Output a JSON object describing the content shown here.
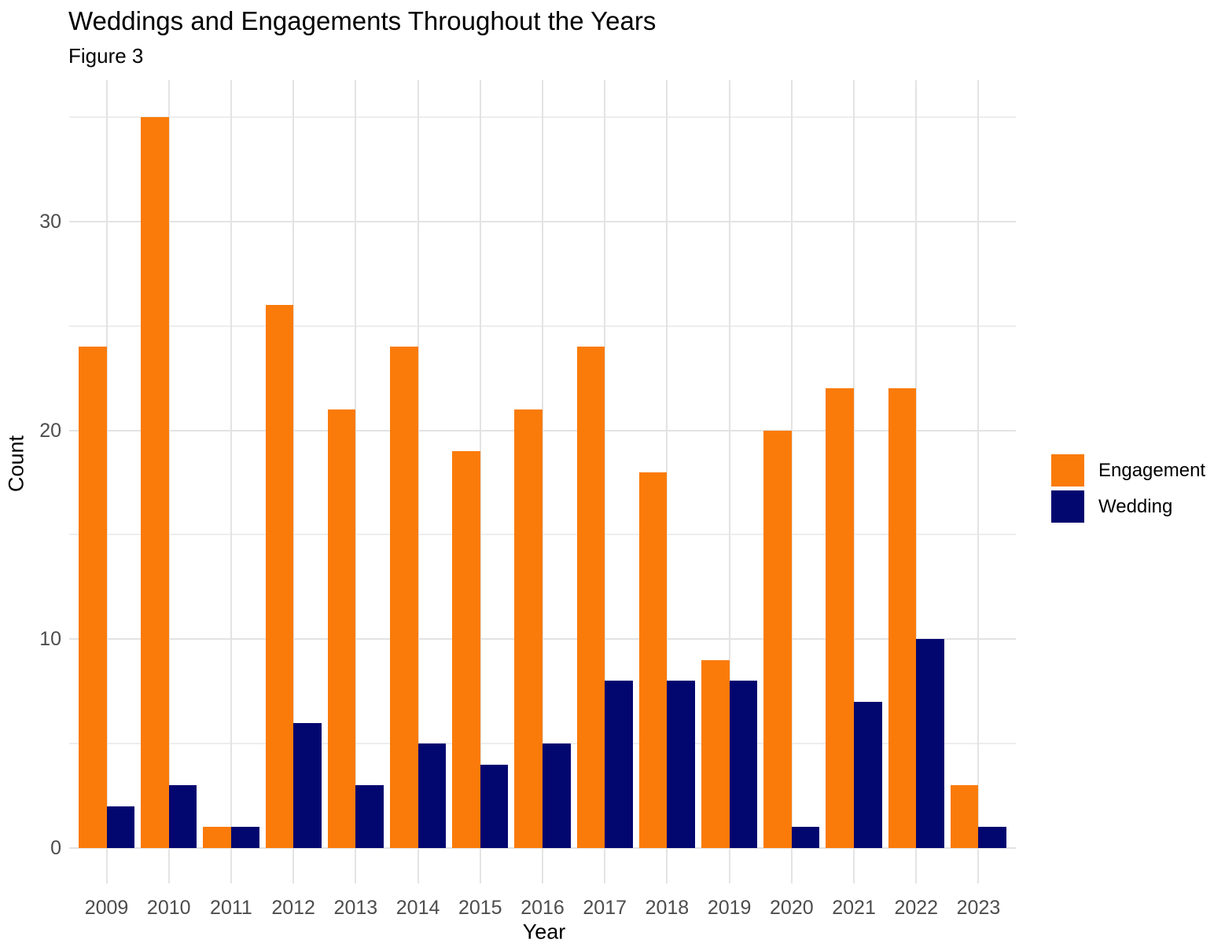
{
  "chart_data": {
    "type": "bar",
    "grouping": "dodged",
    "title": "Weddings and Engagements Throughout the Years",
    "subtitle": "Figure 3",
    "xlabel": "Year",
    "ylabel": "Count",
    "categories": [
      "2009",
      "2010",
      "2011",
      "2012",
      "2013",
      "2014",
      "2015",
      "2016",
      "2017",
      "2018",
      "2019",
      "2020",
      "2021",
      "2022",
      "2023"
    ],
    "series": [
      {
        "name": "Engagement",
        "color": "#FA7B0A",
        "values": [
          24,
          35,
          1,
          26,
          21,
          24,
          19,
          21,
          24,
          18,
          9,
          20,
          22,
          22,
          3
        ]
      },
      {
        "name": "Wedding",
        "color": "#02066F",
        "values": [
          2,
          3,
          1,
          6,
          3,
          5,
          4,
          5,
          8,
          8,
          8,
          1,
          7,
          10,
          1
        ]
      }
    ],
    "y_ticks": [
      0,
      10,
      20,
      30
    ],
    "y_minor_ticks": [
      5,
      15,
      25,
      35
    ],
    "ylim": [
      0,
      36.8
    ],
    "grid": true,
    "legend_position": "right",
    "colors": {
      "grid_major": "#E3E3E3",
      "grid_minor": "#EDEDED",
      "tick_mark": "#E4E4E4",
      "tick_label": "#4D4D4D",
      "text": "#000000",
      "background": "#FFFFFF"
    }
  }
}
